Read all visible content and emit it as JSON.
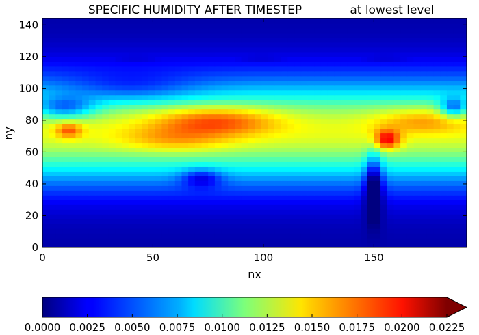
{
  "chart_data": [
    {
      "type": "heatmap",
      "title": "SPECIFIC HUMIDITY AFTER TIMESTEP",
      "subtitle": "at lowest level",
      "xlabel": "nx",
      "ylabel": "ny",
      "xlim": [
        0,
        192
      ],
      "ylim": [
        0,
        144
      ],
      "xticks": [
        0,
        50,
        100,
        150
      ],
      "yticks": [
        0,
        20,
        40,
        60,
        80,
        100,
        120,
        140
      ],
      "grid": false,
      "colormap": "jet",
      "zlim": [
        0.0,
        0.0225
      ],
      "description_of_field": "specific humidity highest in tropics (~0.017-0.022 near nx 60-90, ny 60-85 and over South America nx~155, ny~65), low toward poles (~0.001-0.004 at ny<15 and ny>115)",
      "field_samples": [
        {
          "nx": 10,
          "ny": 5,
          "value": 0.0005
        },
        {
          "nx": 96,
          "ny": 25,
          "value": 0.0045
        },
        {
          "nx": 96,
          "ny": 45,
          "value": 0.0095
        },
        {
          "nx": 80,
          "ny": 72,
          "value": 0.017
        },
        {
          "nx": 85,
          "ny": 83,
          "value": 0.0175
        },
        {
          "nx": 155,
          "ny": 68,
          "value": 0.021
        },
        {
          "nx": 12,
          "ny": 74,
          "value": 0.0185
        },
        {
          "nx": 96,
          "ny": 110,
          "value": 0.006
        },
        {
          "nx": 96,
          "ny": 135,
          "value": 0.0015
        }
      ]
    },
    {
      "type": "colorbar",
      "orientation": "horizontal",
      "extend": "max",
      "ticks": [
        0.0,
        0.0025,
        0.005,
        0.0075,
        0.01,
        0.0125,
        0.015,
        0.0175,
        0.02,
        0.0225
      ],
      "tick_labels": [
        "0.0000",
        "0.0025",
        "0.0050",
        "0.0075",
        "0.0100",
        "0.0125",
        "0.0150",
        "0.0175",
        "0.0200",
        "0.0225"
      ],
      "range": [
        0.0,
        0.0225
      ]
    }
  ]
}
